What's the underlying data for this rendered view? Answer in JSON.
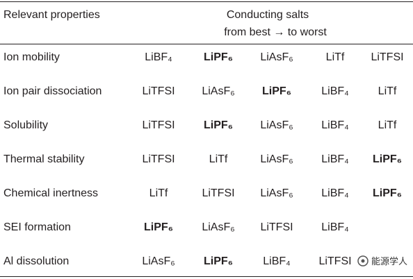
{
  "table": {
    "header": {
      "property": "Relevant properties",
      "salts": "Conducting salts",
      "order": "from best → to worst"
    },
    "rows": [
      {
        "property": "Ion mobility",
        "salts": [
          "LiBF₄",
          "LiPF₆",
          "LiAsF₆",
          "LiTf",
          "LiTFSI"
        ],
        "bold": 1
      },
      {
        "property": "Ion pair dissociation",
        "salts": [
          "LiTFSI",
          "LiAsF₆",
          "LiPF₆",
          "LiBF₄",
          "LiTf"
        ],
        "bold": 2
      },
      {
        "property": "Solubility",
        "salts": [
          "LiTFSI",
          "LiPF₆",
          "LiAsF₆",
          "LiBF₄",
          "LiTf"
        ],
        "bold": 1
      },
      {
        "property": "Thermal stability",
        "salts": [
          "LiTFSI",
          "LiTf",
          "LiAsF₆",
          "LiBF₄",
          "LiPF₆"
        ],
        "bold": 4
      },
      {
        "property": "Chemical inertness",
        "salts": [
          "LiTf",
          "LiTFSI",
          "LiAsF₆",
          "LiBF₄",
          "LiPF₆"
        ],
        "bold": 4
      },
      {
        "property": "SEI formation",
        "salts": [
          "LiPF₆",
          "LiAsF₆",
          "LiTFSI",
          "LiBF₄"
        ],
        "bold": 0
      },
      {
        "property": "Al dissolution",
        "salts": [
          "LiAsF₆",
          "LiPF₆",
          "LiBF₄",
          "LiTFSI"
        ],
        "bold": 1
      }
    ]
  },
  "watermark": "能源学人"
}
